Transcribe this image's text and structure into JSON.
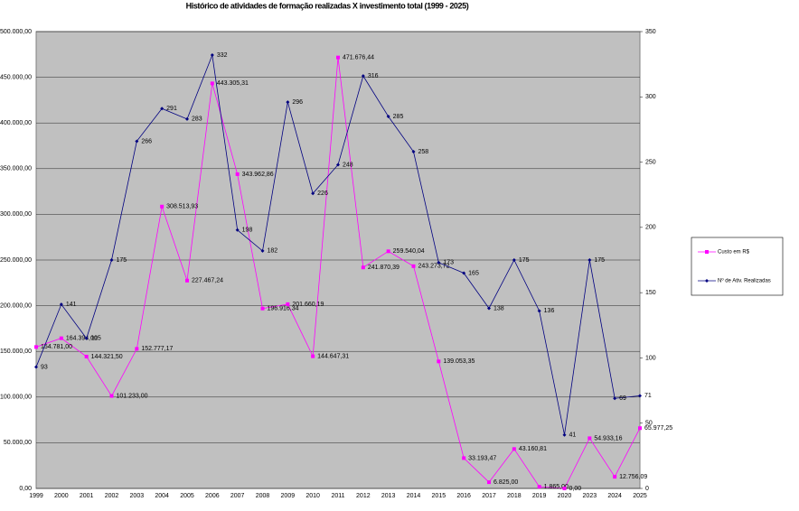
{
  "chart_data": {
    "type": "line",
    "title": "Histórico de atividades de formação realizadas X investimento total (1999 - 2025)",
    "categories": [
      "1999",
      "2000",
      "2001",
      "2002",
      "2003",
      "2004",
      "2005",
      "2006",
      "2007",
      "2008",
      "2009",
      "2010",
      "2011",
      "2012",
      "2013",
      "2014",
      "2015",
      "2016",
      "2017",
      "2018",
      "2019",
      "2020",
      "2023",
      "2024",
      "2025"
    ],
    "series": [
      {
        "name": "Custo em R$",
        "color": "#ff00ff",
        "axis": "y",
        "values": [
          154781.0,
          164394.0,
          144321.5,
          101233.0,
          152777.17,
          308513.93,
          227467.24,
          443305.31,
          343962.86,
          196916.34,
          201660.19,
          144647.31,
          471676.44,
          241870.39,
          259540.04,
          243273.72,
          139053.35,
          33193.47,
          6825.0,
          43160.81,
          1865.0,
          0.0,
          54933.16,
          12756.09,
          65977.25
        ],
        "value_labels": [
          "154.781,00",
          "164.394,00",
          "144.321,50",
          "101.233,00",
          "152.777,17",
          "308.513,93",
          "227.467,24",
          "443.305,31",
          "343.962,86",
          "196.916,34",
          "201.660,19",
          "144.647,31",
          "471.676,44",
          "241.870,39",
          "259.540,04",
          "243.273,72",
          "139.053,35",
          "33.193,47",
          "6.825,00",
          "43.160,81",
          "1.865,00",
          "0,00",
          "54.933,16",
          "12.756,09",
          "65.977,25"
        ]
      },
      {
        "name": "Nº de Ativ. Realizadas",
        "color": "#000080",
        "axis": "y2",
        "values": [
          93,
          141,
          115,
          175,
          266,
          291,
          283,
          332,
          198,
          182,
          296,
          226,
          248,
          316,
          285,
          258,
          173,
          165,
          138,
          175,
          136,
          41,
          175,
          69,
          71
        ]
      }
    ],
    "ylim": [
      0,
      500000
    ],
    "yticks": [
      {
        "value": 0,
        "label": "0,00"
      },
      {
        "value": 50000,
        "label": "50.000,00"
      },
      {
        "value": 100000,
        "label": "100.000,00"
      },
      {
        "value": 150000,
        "label": "150.000,00"
      },
      {
        "value": 200000,
        "label": "200.000,00"
      },
      {
        "value": 250000,
        "label": "250.000,00"
      },
      {
        "value": 300000,
        "label": "300.000,00"
      },
      {
        "value": 350000,
        "label": "350.000,00"
      },
      {
        "value": 400000,
        "label": "400.000,00"
      },
      {
        "value": 450000,
        "label": "450.000,00"
      },
      {
        "value": 500000,
        "label": "500.000,00"
      }
    ],
    "y2lim": [
      0,
      350
    ],
    "y2ticks": [
      0,
      50,
      100,
      150,
      200,
      250,
      300,
      350
    ],
    "grid": true,
    "legend": "right"
  }
}
